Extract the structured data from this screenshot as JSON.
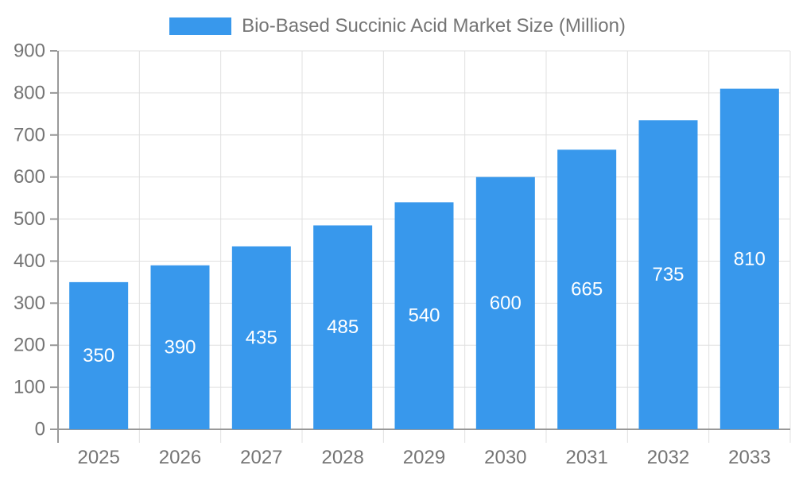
{
  "page": {
    "background": "#ffffff"
  },
  "legend": {
    "label": "Bio-Based Succinic Acid Market Size (Million)",
    "swatch_color": "#3898ec"
  },
  "chart_data": {
    "type": "bar",
    "title": "Bio-Based Succinic Acid Market Size (Million)",
    "categories": [
      "2025",
      "2026",
      "2027",
      "2028",
      "2029",
      "2030",
      "2031",
      "2032",
      "2033"
    ],
    "series": [
      {
        "name": "Bio-Based Succinic Acid Market Size (Million)",
        "values": [
          350,
          390,
          435,
          485,
          540,
          600,
          665,
          735,
          810
        ]
      }
    ],
    "bar_labels": [
      "350",
      "390",
      "435",
      "485",
      "540",
      "600",
      "665",
      "735",
      "810"
    ],
    "xlabel": "",
    "ylabel": "",
    "ylim": [
      0,
      900
    ],
    "yticks": [
      0,
      100,
      200,
      300,
      400,
      500,
      600,
      700,
      800,
      900
    ],
    "grid": true,
    "legend_position": "top",
    "colors": {
      "bar": "#3898ec",
      "bar_label": "#ffffff",
      "axis": "#999999",
      "grid": "#e0e0e0",
      "tick_text": "#757575",
      "legend_text": "#757575"
    }
  }
}
